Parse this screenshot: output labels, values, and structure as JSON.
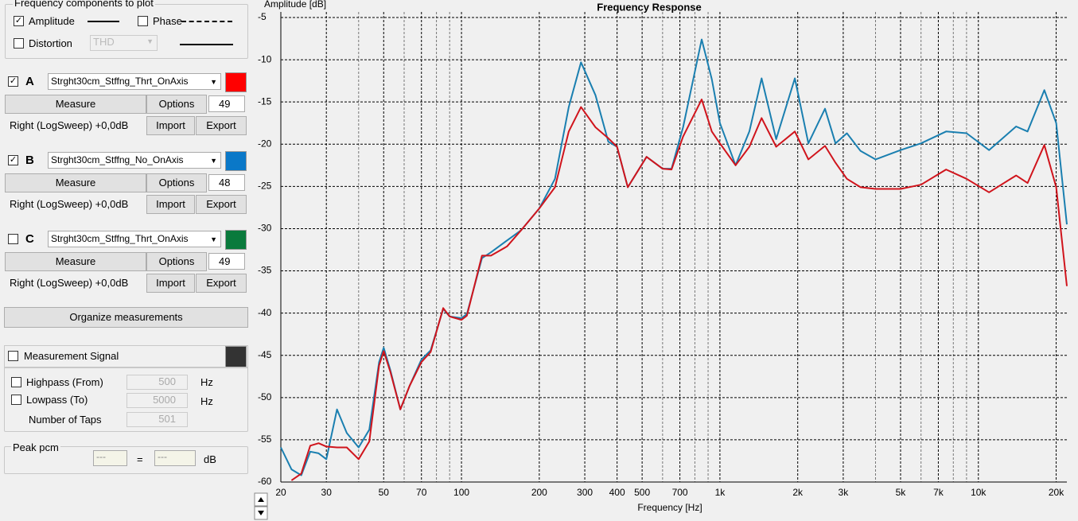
{
  "panel": {
    "components": {
      "title": "Frequency components to plot",
      "amplitude": "Amplitude",
      "amplitude_checked": true,
      "phase": "Phase",
      "phase_checked": false,
      "distortion": "Distortion",
      "distortion_checked": false,
      "distortion_type": "THD"
    },
    "measurements": [
      {
        "letter": "A",
        "checked": true,
        "name": "Strght30cm_Stffng_Thrt_OnAxis",
        "color": "#ff0000",
        "measure": "Measure",
        "options": "Options",
        "count": "49",
        "sweep": "Right (LogSweep) +0,0dB",
        "import": "Import",
        "export": "Export"
      },
      {
        "letter": "B",
        "checked": true,
        "name": "Strght30cm_Stffng_No_OnAxis",
        "color": "#0a78c8",
        "measure": "Measure",
        "options": "Options",
        "count": "48",
        "sweep": "Right (LogSweep) +0,0dB",
        "import": "Import",
        "export": "Export"
      },
      {
        "letter": "C",
        "checked": false,
        "name": "Strght30cm_Stffng_Thrt_OnAxis",
        "color": "#0a7a3c",
        "measure": "Measure",
        "options": "Options",
        "count": "49",
        "sweep": "Right (LogSweep) +0,0dB",
        "import": "Import",
        "export": "Export"
      }
    ],
    "organize": "Organize measurements",
    "signal": {
      "label": "Measurement Signal",
      "checked": false,
      "highpass": "Highpass (From)",
      "highpass_checked": false,
      "highpass_value": "500",
      "lowpass": "Lowpass (To)",
      "lowpass_checked": false,
      "lowpass_value": "5000",
      "taps_label": "Number of Taps",
      "taps_value": "501",
      "unit": "Hz"
    },
    "peak": {
      "label": "Peak pcm",
      "left": "---",
      "eq": "=",
      "right": "---",
      "unit": "dB"
    }
  },
  "chart_data": {
    "type": "line",
    "title": "Frequency Response",
    "ylabel": "Amplitude [dB]",
    "xlabel": "Frequency [Hz]",
    "log_x": true,
    "grid": true,
    "xlim": [
      20,
      22000
    ],
    "ylim": [
      -60,
      -5
    ],
    "xticks": [
      20,
      30,
      50,
      70,
      100,
      200,
      300,
      400,
      500,
      700,
      {
        "value": 1000,
        "label": "1k"
      },
      {
        "value": 2000,
        "label": "2k"
      },
      {
        "value": 3000,
        "label": "3k"
      },
      {
        "value": 5000,
        "label": "5k"
      },
      {
        "value": 7000,
        "label": "7k"
      },
      {
        "value": 10000,
        "label": "10k"
      },
      {
        "value": 20000,
        "label": "20k"
      }
    ],
    "xminorticks": [
      40,
      60,
      80,
      90,
      600,
      800,
      900,
      4000,
      6000,
      8000,
      9000
    ],
    "yticks": [
      -5,
      -10,
      -15,
      -20,
      -25,
      -30,
      -35,
      -40,
      -45,
      -50,
      -55,
      -60
    ],
    "x": [
      20,
      22,
      24,
      26,
      28,
      30,
      33,
      36,
      40,
      44,
      48,
      50,
      53,
      58,
      63,
      70,
      76,
      85,
      90,
      100,
      105,
      120,
      130,
      150,
      170,
      200,
      230,
      260,
      290,
      330,
      370,
      400,
      440,
      520,
      600,
      650,
      720,
      850,
      930,
      1000,
      1150,
      1300,
      1450,
      1650,
      1950,
      2200,
      2550,
      2800,
      3100,
      3500,
      4000,
      5000,
      6000,
      7500,
      9000,
      11000,
      14000,
      15500,
      18000,
      20000,
      22000
    ],
    "series": [
      {
        "color": "#1a7fb0",
        "values": [
          -55.9,
          -58.5,
          -59.2,
          -56.4,
          -56.6,
          -57.3,
          -51.4,
          -54.2,
          -55.9,
          -53.8,
          -45.8,
          -44.1,
          -46.7,
          -51.4,
          -48.6,
          -45.5,
          -44.4,
          -39.5,
          -40.4,
          -40.6,
          -40.1,
          -33.5,
          -32.8,
          -31.4,
          -30.2,
          -27.6,
          -24.1,
          -15.6,
          -10.3,
          -14.2,
          -19.7,
          -20.3,
          -25.1,
          -21.5,
          -22.9,
          -22.9,
          -18.0,
          -7.6,
          -12.3,
          -17.5,
          -22.5,
          -18.5,
          -12.2,
          -19.4,
          -12.2,
          -19.9,
          -15.8,
          -19.9,
          -18.7,
          -20.8,
          -21.8,
          -20.7,
          -19.9,
          -18.5,
          -18.7,
          -20.7,
          -17.9,
          -18.5,
          -13.6,
          -17.5,
          -29.5
        ]
      },
      {
        "color": "#d0141c",
        "values": [
          null,
          -59.8,
          -59.0,
          -55.7,
          -55.4,
          -55.8,
          -55.9,
          -55.9,
          -57.3,
          -55.2,
          -46.2,
          -44.5,
          -46.9,
          -51.4,
          -48.6,
          -45.8,
          -44.6,
          -39.4,
          -40.4,
          -40.8,
          -40.3,
          -33.2,
          -33.2,
          -32.1,
          -30.2,
          -27.6,
          -25.1,
          -18.5,
          -15.6,
          -18.0,
          -19.3,
          -20.3,
          -25.1,
          -21.5,
          -22.9,
          -23.0,
          -19.1,
          -14.7,
          -18.5,
          -19.9,
          -22.5,
          -20.3,
          -16.9,
          -20.3,
          -18.5,
          -21.8,
          -20.2,
          -22.2,
          -24.1,
          -25.1,
          -25.3,
          -25.3,
          -24.8,
          -23.0,
          -24.1,
          -25.7,
          -23.7,
          -24.6,
          -20.1,
          -25.1,
          -36.8
        ]
      }
    ]
  }
}
